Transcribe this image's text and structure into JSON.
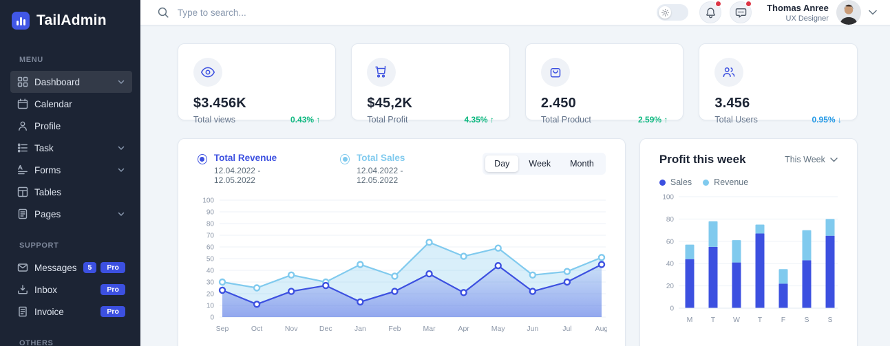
{
  "app": {
    "name": "TailAdmin"
  },
  "sidebar": {
    "menu_label": "MENU",
    "items": [
      {
        "label": "Dashboard",
        "icon": "dashboard-icon",
        "chevron": true,
        "active": true
      },
      {
        "label": "Calendar",
        "icon": "calendar-icon",
        "chevron": false
      },
      {
        "label": "Profile",
        "icon": "profile-icon",
        "chevron": false
      },
      {
        "label": "Task",
        "icon": "task-icon",
        "chevron": true
      },
      {
        "label": "Forms",
        "icon": "forms-icon",
        "chevron": true
      },
      {
        "label": "Tables",
        "icon": "tables-icon",
        "chevron": false
      },
      {
        "label": "Pages",
        "icon": "pages-icon",
        "chevron": true
      }
    ],
    "support_label": "SUPPORT",
    "support_items": [
      {
        "label": "Messages",
        "icon": "messages-icon",
        "badge": "5",
        "pro": "Pro"
      },
      {
        "label": "Inbox",
        "icon": "inbox-icon",
        "pro": "Pro"
      },
      {
        "label": "Invoice",
        "icon": "invoice-icon",
        "pro": "Pro"
      }
    ],
    "others_label": "OTHERS"
  },
  "header": {
    "search_placeholder": "Type to search...",
    "user": {
      "name": "Thomas Anree",
      "role": "UX Designer"
    }
  },
  "stats": [
    {
      "icon": "eye-icon",
      "value": "$3.456K",
      "label": "Total views",
      "delta": "0.43% ↑",
      "direction": "up"
    },
    {
      "icon": "cart-icon",
      "value": "$45,2K",
      "label": "Total Profit",
      "delta": "4.35% ↑",
      "direction": "up"
    },
    {
      "icon": "bag-icon",
      "value": "2.450",
      "label": "Total Product",
      "delta": "2.59% ↑",
      "direction": "up"
    },
    {
      "icon": "users-icon",
      "value": "3.456",
      "label": "Total Users",
      "delta": "0.95% ↓",
      "direction": "down"
    }
  ],
  "chart_data": [
    {
      "type": "area",
      "x": [
        "Sep",
        "Oct",
        "Nov",
        "Dec",
        "Jan",
        "Feb",
        "Mar",
        "Apr",
        "May",
        "Jun",
        "Jul",
        "Aug"
      ],
      "series": [
        {
          "name": "Total Revenue",
          "period": "12.04.2022 - 12.05.2022",
          "color": "#3C50E0",
          "values": [
            23,
            11,
            22,
            27,
            13,
            22,
            37,
            21,
            44,
            22,
            30,
            45
          ]
        },
        {
          "name": "Total Sales",
          "period": "12.04.2022 - 12.05.2022",
          "color": "#80CAEE",
          "values": [
            30,
            25,
            36,
            30,
            45,
            35,
            64,
            52,
            59,
            36,
            39,
            51
          ]
        }
      ],
      "ylim": [
        0,
        100
      ],
      "ystep": 10,
      "grid": "horizontal",
      "range_tabs": [
        "Day",
        "Week",
        "Month"
      ],
      "active_tab": "Day"
    },
    {
      "type": "bar",
      "title": "Profit this week",
      "period_selector": "This Week",
      "categories": [
        "M",
        "T",
        "W",
        "T",
        "F",
        "S",
        "S"
      ],
      "series": [
        {
          "name": "Sales",
          "color": "#3C50E0",
          "values": [
            44,
            55,
            41,
            67,
            22,
            43,
            65
          ]
        },
        {
          "name": "Revenue",
          "color": "#80CAEE",
          "values": [
            13,
            23,
            20,
            8,
            13,
            27,
            15
          ]
        }
      ],
      "stacked": true,
      "ylim": [
        0,
        100
      ],
      "ystep": 20,
      "grid": "horizontal",
      "legend_position": "top-left"
    }
  ],
  "colors": {
    "primary": "#3C50E0",
    "secondary": "#80CAEE",
    "success": "#10B981",
    "info": "#259AE6",
    "danger": "#DC3545",
    "sidebar_bg": "#1C2434"
  }
}
